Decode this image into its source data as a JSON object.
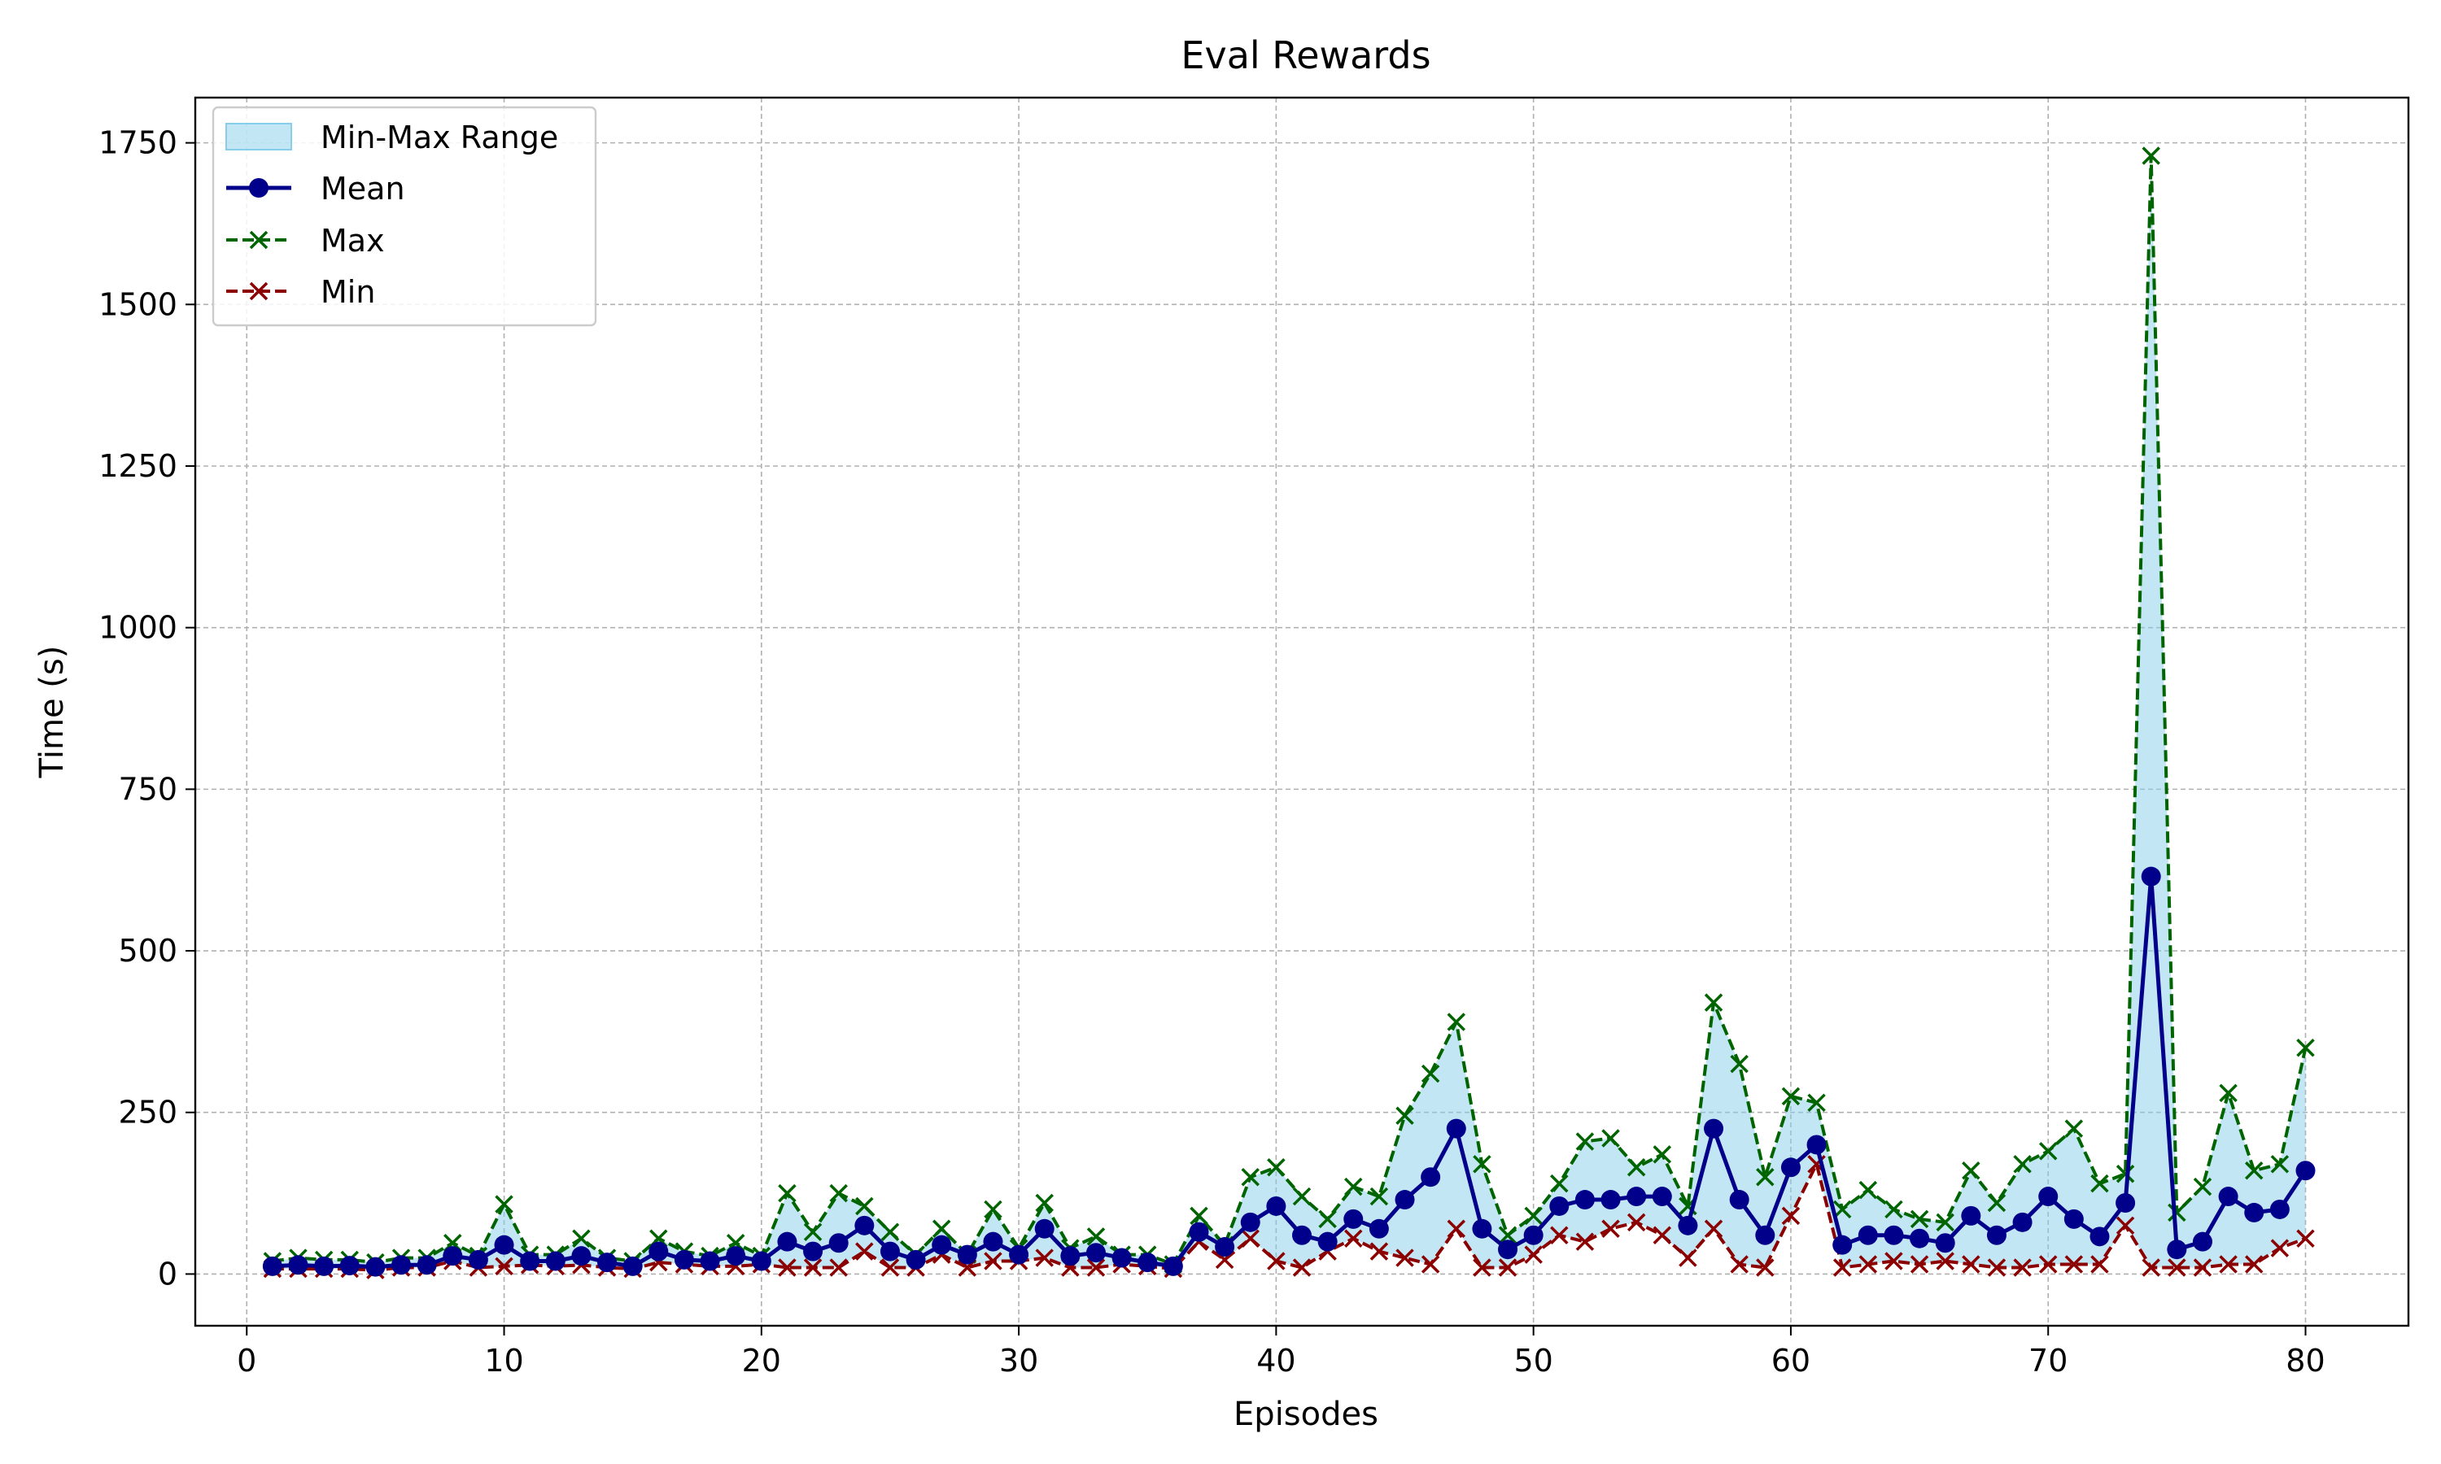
{
  "chart_data": {
    "type": "line",
    "title": "Eval Rewards",
    "xlabel": "Episodes",
    "ylabel": "Time (s)",
    "xlim": [
      -2,
      84
    ],
    "ylim": [
      -80,
      1820
    ],
    "xticks": [
      0,
      10,
      20,
      30,
      40,
      50,
      60,
      70,
      80
    ],
    "yticks": [
      0,
      250,
      500,
      750,
      1000,
      1250,
      1500,
      1750
    ],
    "grid": true,
    "legend_position": "top-left",
    "x": [
      1,
      2,
      3,
      4,
      5,
      6,
      7,
      8,
      9,
      10,
      11,
      12,
      13,
      14,
      15,
      16,
      17,
      18,
      19,
      20,
      21,
      22,
      23,
      24,
      25,
      26,
      27,
      28,
      29,
      30,
      31,
      32,
      33,
      34,
      35,
      36,
      37,
      38,
      39,
      40,
      41,
      42,
      43,
      44,
      45,
      46,
      47,
      48,
      49,
      50,
      51,
      52,
      53,
      54,
      55,
      56,
      57,
      58,
      59,
      60,
      61,
      62,
      63,
      64,
      65,
      66,
      67,
      68,
      69,
      70,
      71,
      72,
      73,
      74,
      75,
      76,
      77,
      78,
      79,
      80
    ],
    "range_label": "Min-Max Range",
    "series": [
      {
        "name": "Mean",
        "color": "#00008b",
        "style": "solid",
        "marker": "circle",
        "values": [
          12,
          14,
          12,
          13,
          11,
          14,
          14,
          28,
          22,
          45,
          20,
          20,
          28,
          18,
          12,
          35,
          22,
          20,
          28,
          20,
          50,
          35,
          48,
          75,
          35,
          22,
          45,
          30,
          50,
          30,
          70,
          28,
          33,
          25,
          18,
          12,
          65,
          42,
          80,
          105,
          60,
          50,
          85,
          70,
          115,
          150,
          225,
          70,
          38,
          60,
          105,
          115,
          115,
          120,
          120,
          75,
          225,
          115,
          60,
          165,
          200,
          45,
          60,
          60,
          55,
          48,
          90,
          60,
          80,
          120,
          85,
          58,
          110,
          615,
          38,
          50,
          120,
          95,
          100,
          160
        ]
      },
      {
        "name": "Max",
        "color": "#006400",
        "style": "dashed",
        "marker": "x",
        "values": [
          20,
          25,
          22,
          22,
          18,
          25,
          25,
          48,
          28,
          108,
          30,
          30,
          55,
          25,
          20,
          55,
          35,
          28,
          48,
          28,
          125,
          65,
          125,
          105,
          65,
          30,
          70,
          30,
          100,
          40,
          110,
          40,
          58,
          30,
          30,
          15,
          90,
          45,
          150,
          165,
          120,
          85,
          135,
          120,
          245,
          310,
          390,
          170,
          60,
          90,
          140,
          205,
          210,
          165,
          185,
          105,
          420,
          325,
          150,
          275,
          265,
          100,
          130,
          100,
          85,
          80,
          160,
          110,
          170,
          190,
          225,
          140,
          155,
          1730,
          95,
          135,
          280,
          160,
          170,
          350
        ]
      },
      {
        "name": "Min",
        "color": "#8b0000",
        "style": "dashed",
        "marker": "x",
        "values": [
          8,
          8,
          8,
          8,
          6,
          10,
          10,
          20,
          10,
          12,
          14,
          12,
          14,
          10,
          8,
          18,
          15,
          12,
          12,
          15,
          10,
          10,
          10,
          35,
          10,
          10,
          30,
          10,
          20,
          20,
          25,
          10,
          10,
          15,
          12,
          8,
          50,
          22,
          55,
          20,
          10,
          35,
          55,
          35,
          25,
          15,
          70,
          10,
          10,
          30,
          60,
          50,
          70,
          80,
          60,
          25,
          70,
          15,
          10,
          90,
          170,
          10,
          15,
          20,
          15,
          20,
          15,
          10,
          10,
          15,
          15,
          15,
          75,
          10,
          10,
          10,
          15,
          15,
          40,
          55
        ]
      }
    ],
    "fill_color": "#87ceeb"
  }
}
